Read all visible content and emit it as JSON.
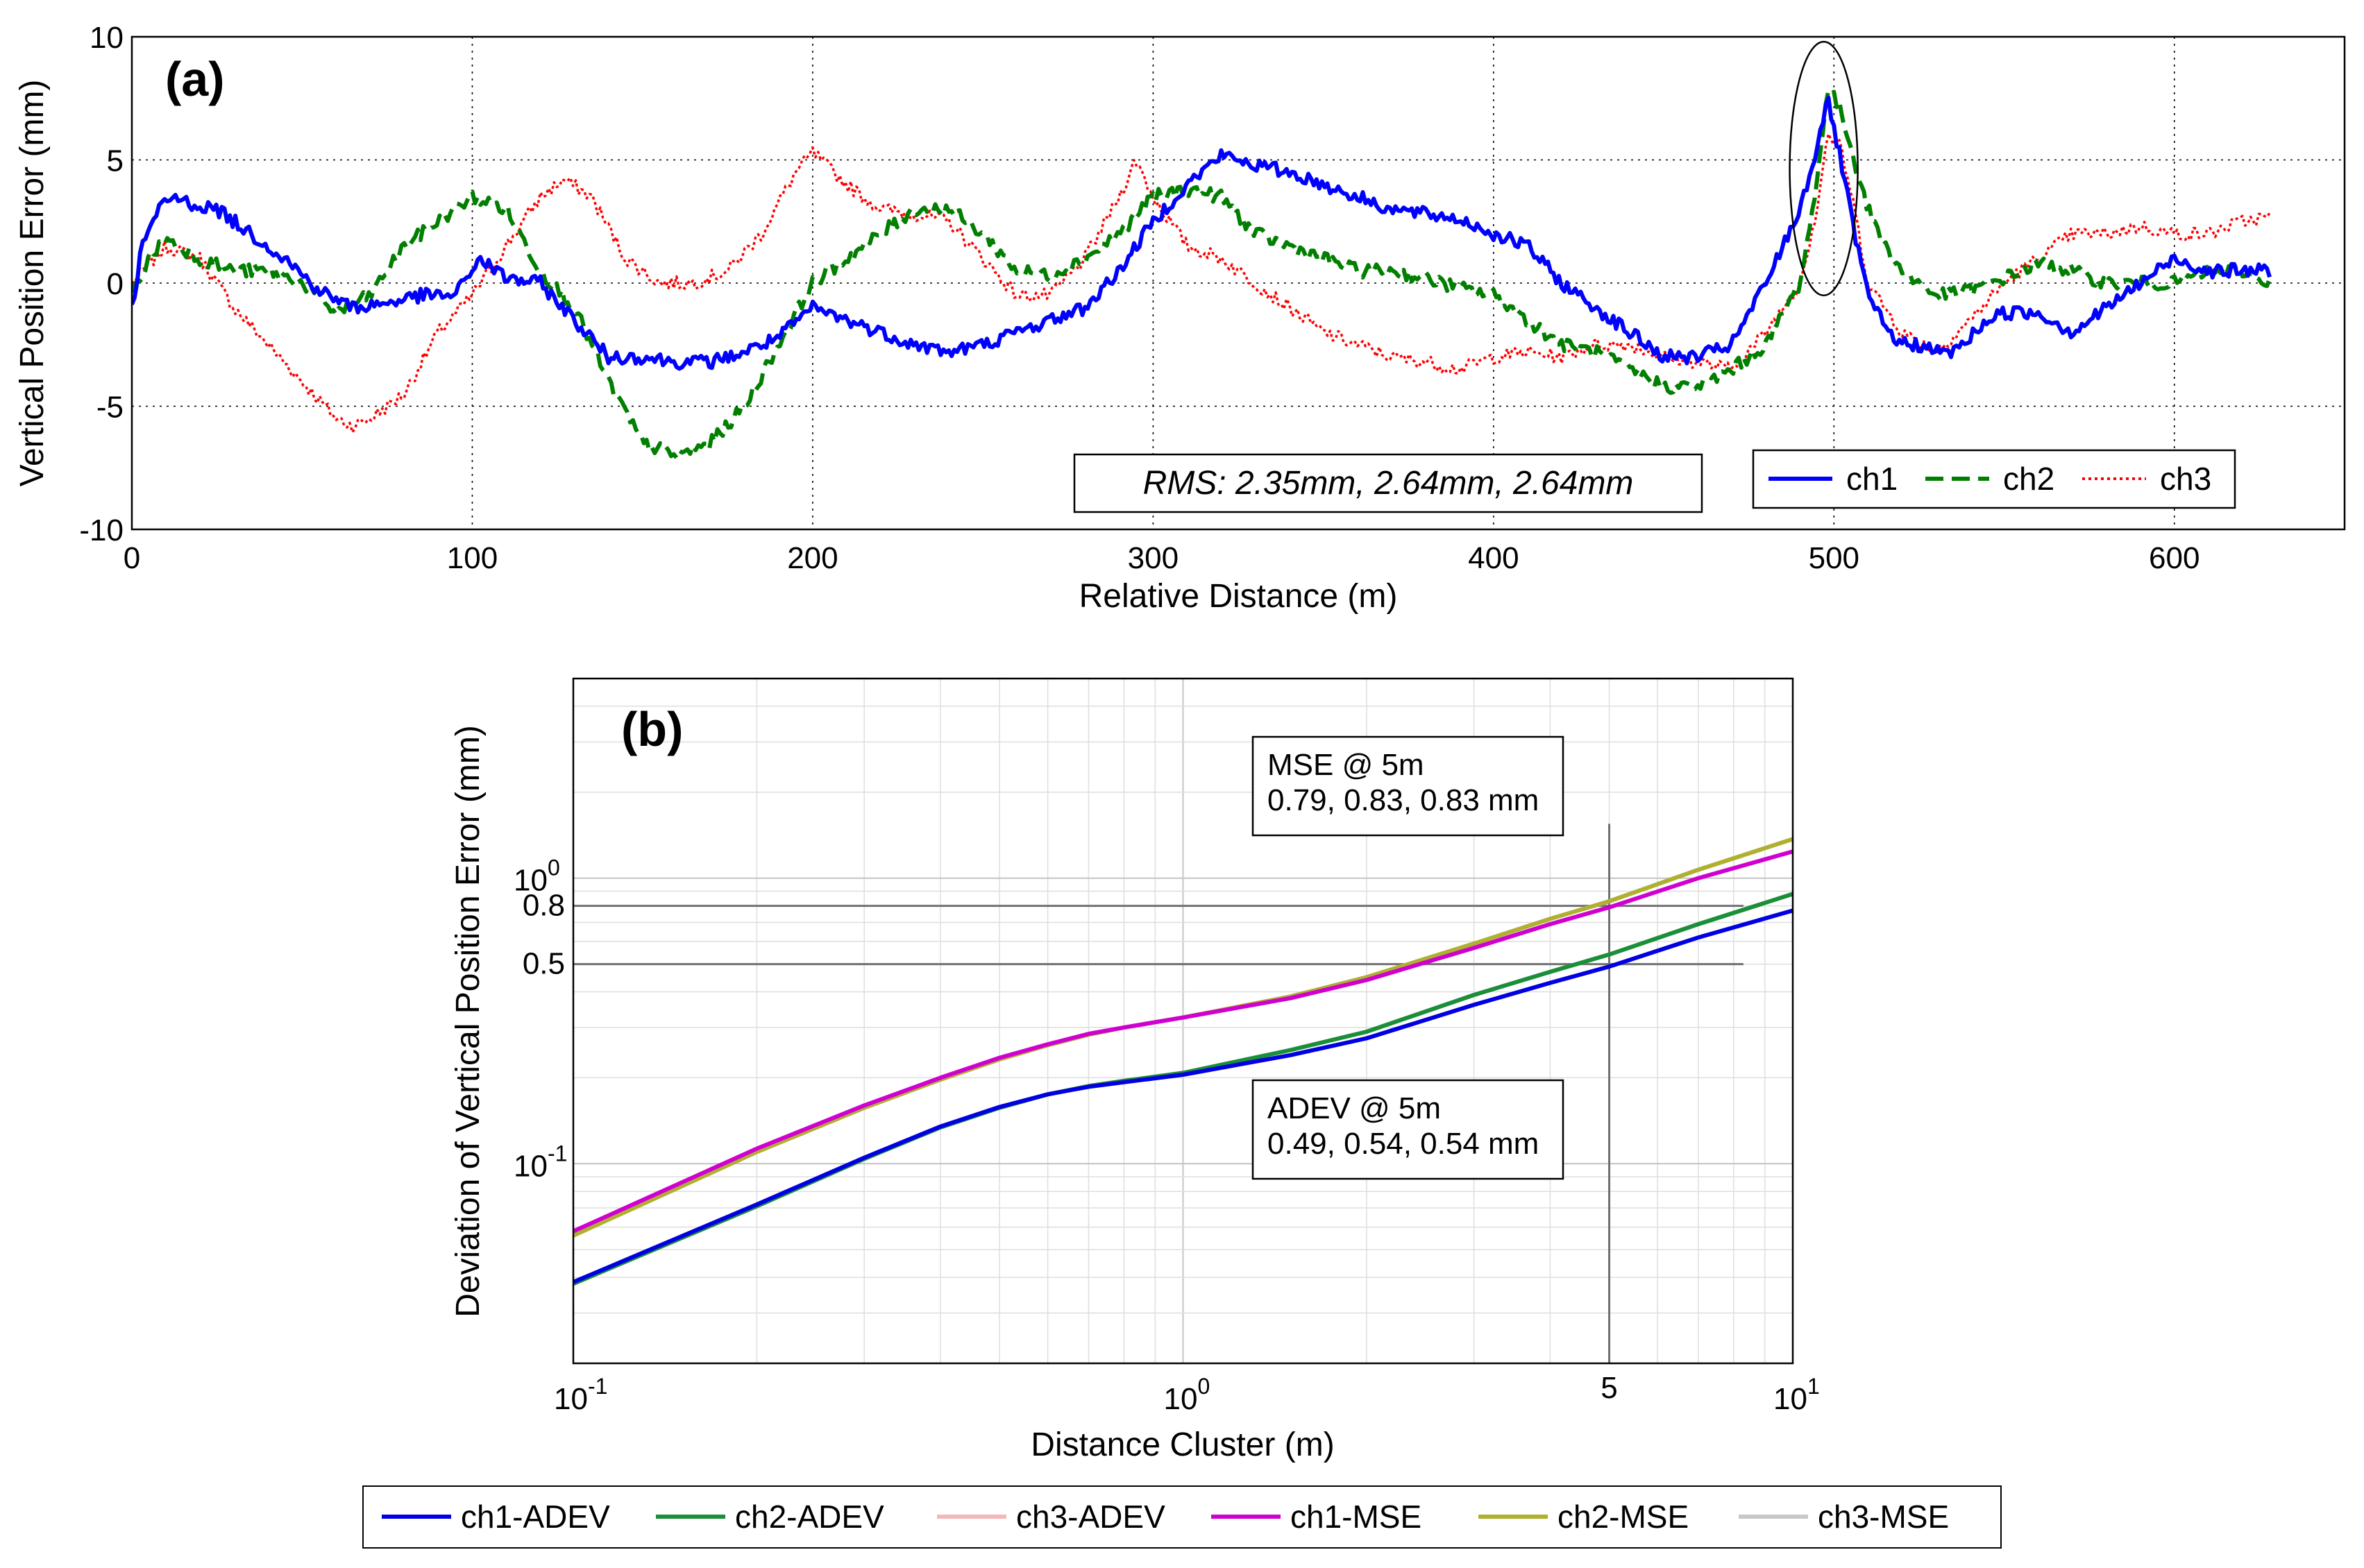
{
  "chart_data": [
    {
      "id": "a",
      "panel_label": "(a)",
      "type": "line",
      "xlabel": "Relative Distance (m)",
      "ylabel": "Vertical Position Error (mm)",
      "xlim": [
        0,
        650
      ],
      "ylim": [
        -10,
        10
      ],
      "xticks": [
        0,
        100,
        200,
        300,
        400,
        500,
        600
      ],
      "yticks": [
        -10,
        -5,
        0,
        5,
        10
      ],
      "grid": true,
      "annotation": "RMS: 2.35mm, 2.64mm, 2.64mm",
      "highlight_ellipse": {
        "x_center": 497,
        "x_halfwidth": 10,
        "y_min": -0.5,
        "y_max": 9.8
      },
      "legend_position": "bottom-right",
      "series": [
        {
          "name": "ch1",
          "color": "#0000ff",
          "style": "solid",
          "x": [
            0,
            3,
            8,
            12,
            18,
            25,
            35,
            45,
            55,
            65,
            75,
            85,
            95,
            102,
            110,
            120,
            130,
            140,
            150,
            160,
            170,
            180,
            190,
            200,
            210,
            220,
            230,
            240,
            250,
            260,
            270,
            280,
            290,
            300,
            310,
            320,
            330,
            340,
            350,
            360,
            370,
            380,
            390,
            400,
            410,
            420,
            430,
            440,
            450,
            460,
            470,
            480,
            490,
            495,
            498,
            502,
            506,
            510,
            515,
            520,
            525,
            530,
            535,
            540,
            545,
            550,
            560,
            570,
            580,
            590,
            600,
            610,
            620,
            628
          ],
          "values": [
            -1,
            1.5,
            3,
            3.5,
            3.2,
            3,
            2,
            1,
            -0.3,
            -1,
            -0.8,
            -0.5,
            -0.5,
            1,
            0.2,
            0,
            -1.5,
            -3,
            -3,
            -3.2,
            -3.2,
            -2.8,
            -2.2,
            -1,
            -1.5,
            -2,
            -2.5,
            -2.8,
            -2.5,
            -2,
            -1.5,
            -1,
            0.5,
            2.5,
            4,
            5.2,
            4.8,
            4.5,
            4,
            3.5,
            3,
            2.8,
            2.6,
            2,
            1.5,
            0,
            -1,
            -2,
            -3,
            -3,
            -2.5,
            0,
            3,
            5.5,
            7.5,
            5,
            2,
            -0.5,
            -1.8,
            -2.5,
            -2.5,
            -2.8,
            -2.8,
            -2.2,
            -1.5,
            -1.2,
            -1.2,
            -2,
            -1,
            0,
            1,
            0.5,
            0.5,
            0.5
          ]
        },
        {
          "name": "ch2",
          "color": "#007f00",
          "style": "dashed",
          "x": [
            0,
            5,
            10,
            20,
            30,
            40,
            50,
            60,
            70,
            80,
            90,
            100,
            110,
            120,
            130,
            140,
            150,
            160,
            170,
            180,
            190,
            200,
            210,
            220,
            230,
            240,
            250,
            260,
            270,
            280,
            290,
            300,
            310,
            320,
            330,
            340,
            350,
            360,
            370,
            380,
            390,
            400,
            410,
            420,
            430,
            440,
            450,
            460,
            470,
            480,
            490,
            495,
            498,
            502,
            506,
            510,
            515,
            520,
            530,
            540,
            550,
            560,
            570,
            580,
            590,
            600,
            610,
            620,
            628
          ],
          "values": [
            -0.5,
            1,
            1.8,
            1,
            0.5,
            0.5,
            0,
            -1.2,
            -0.5,
            1.5,
            2.5,
            3.5,
            3,
            0.5,
            -1,
            -4,
            -6.5,
            -7,
            -6.5,
            -5,
            -2.5,
            0,
            1,
            2,
            3,
            3,
            2,
            0.5,
            0.3,
            1,
            2,
            3.5,
            3.8,
            3.5,
            2,
            1.5,
            1,
            0.5,
            0.5,
            0.2,
            -0.2,
            -0.5,
            -1.5,
            -2.5,
            -2.8,
            -3.5,
            -4.2,
            -4.2,
            -3.5,
            -2.5,
            0,
            4,
            8,
            7,
            5,
            3,
            1.5,
            0.5,
            -0.5,
            -0.3,
            0.2,
            0.8,
            0.5,
            0,
            0,
            0,
            0.5,
            0.5,
            0
          ]
        },
        {
          "name": "ch3",
          "color": "#ff0000",
          "style": "dotted",
          "x": [
            0,
            10,
            20,
            30,
            40,
            50,
            60,
            65,
            70,
            80,
            90,
            100,
            110,
            120,
            127,
            135,
            145,
            155,
            165,
            175,
            185,
            195,
            200,
            210,
            220,
            230,
            240,
            250,
            260,
            270,
            280,
            290,
            295,
            300,
            310,
            320,
            330,
            340,
            350,
            360,
            370,
            380,
            390,
            400,
            410,
            420,
            430,
            440,
            450,
            460,
            470,
            480,
            490,
            495,
            498,
            502,
            506,
            510,
            520,
            530,
            540,
            550,
            560,
            570,
            580,
            590,
            600,
            610,
            620,
            628
          ],
          "values": [
            0,
            1.5,
            1,
            -1,
            -2.5,
            -4,
            -5.5,
            -5.8,
            -5.5,
            -4.5,
            -2,
            -0.5,
            1.5,
            3.5,
            4.2,
            3.5,
            1,
            0,
            0,
            0.5,
            2,
            4.5,
            5.3,
            4,
            3,
            2.8,
            2.5,
            1,
            -0.5,
            -0.5,
            1,
            3.5,
            5,
            3.5,
            1.5,
            1,
            0,
            -1,
            -2,
            -2.5,
            -3,
            -3.2,
            -3.5,
            -3,
            -2.8,
            -3,
            -2.5,
            -2.5,
            -3,
            -3.2,
            -3.5,
            -2,
            0,
            3,
            6,
            5.5,
            3,
            0,
            -2,
            -2.8,
            -1.5,
            0,
            1,
            2,
            2,
            2.3,
            2,
            2,
            2.5,
            2.7
          ]
        }
      ]
    },
    {
      "id": "b",
      "panel_label": "(b)",
      "type": "line",
      "scale": "log-log",
      "xlabel": "Distance Cluster (m)",
      "ylabel": "Deviation of Vertical Position Error (mm)",
      "xlim": [
        0.1,
        10
      ],
      "ylim": [
        0.02,
        5
      ],
      "xtick_labels": [
        "10",
        "10"
      ],
      "xtick_exponents": [
        "-1",
        "0",
        "1"
      ],
      "ytick_exponents": [
        "-1",
        "0"
      ],
      "extra_ytick_labels": [
        "0.8",
        "0.5"
      ],
      "extra_xtick_label": "5",
      "reference_lines": {
        "y": [
          0.8,
          0.5
        ],
        "x": [
          5
        ]
      },
      "grid": true,
      "annotations": [
        {
          "line1": "MSE @ 5m",
          "line2": "0.79, 0.83, 0.83 mm"
        },
        {
          "line1": "ADEV @ 5m",
          "line2": "0.49, 0.54, 0.54 mm"
        }
      ],
      "legend_position": "bottom-outside",
      "series": [
        {
          "name": "ch1-ADEV",
          "color": "#0000e0",
          "x": [
            0.1,
            0.2,
            0.3,
            0.4,
            0.5,
            0.6,
            0.7,
            0.8,
            1,
            1.5,
            2,
            3,
            4,
            5,
            7,
            10
          ],
          "values": [
            0.0385,
            0.072,
            0.105,
            0.135,
            0.158,
            0.175,
            0.186,
            0.193,
            0.205,
            0.24,
            0.275,
            0.36,
            0.43,
            0.49,
            0.62,
            0.77
          ]
        },
        {
          "name": "ch2-ADEV",
          "color": "#1a8f3a",
          "x": [
            0.1,
            0.2,
            0.3,
            0.4,
            0.5,
            0.6,
            0.7,
            0.8,
            1,
            1.5,
            2,
            3,
            4,
            5,
            7,
            10
          ],
          "values": [
            0.038,
            0.071,
            0.104,
            0.134,
            0.157,
            0.175,
            0.187,
            0.195,
            0.208,
            0.25,
            0.29,
            0.39,
            0.47,
            0.54,
            0.69,
            0.88
          ]
        },
        {
          "name": "ch3-ADEV",
          "color": "#f4b8b8",
          "x": [
            0.1,
            0.2,
            0.3,
            0.4,
            0.5,
            0.6,
            0.7,
            0.8,
            1,
            1.5,
            2,
            3,
            4,
            5,
            7,
            10
          ],
          "values": [
            0.038,
            0.071,
            0.104,
            0.134,
            0.157,
            0.175,
            0.187,
            0.195,
            0.208,
            0.25,
            0.29,
            0.39,
            0.47,
            0.54,
            0.69,
            0.88
          ]
        },
        {
          "name": "ch1-MSE",
          "color": "#d000d0",
          "x": [
            0.1,
            0.2,
            0.3,
            0.4,
            0.5,
            0.6,
            0.7,
            0.8,
            1,
            1.5,
            2,
            3,
            4,
            5,
            7,
            10
          ],
          "values": [
            0.058,
            0.113,
            0.16,
            0.2,
            0.235,
            0.262,
            0.285,
            0.3,
            0.325,
            0.38,
            0.44,
            0.57,
            0.69,
            0.79,
            1.0,
            1.24
          ]
        },
        {
          "name": "ch2-MSE",
          "color": "#b0b030",
          "x": [
            0.1,
            0.2,
            0.3,
            0.4,
            0.5,
            0.6,
            0.7,
            0.8,
            1,
            1.5,
            2,
            3,
            4,
            5,
            7,
            10
          ],
          "values": [
            0.056,
            0.11,
            0.157,
            0.197,
            0.232,
            0.26,
            0.283,
            0.3,
            0.325,
            0.385,
            0.45,
            0.59,
            0.72,
            0.83,
            1.07,
            1.37
          ]
        },
        {
          "name": "ch3-MSE",
          "color": "#c8c8c8",
          "x": [
            0.1,
            0.2,
            0.3,
            0.4,
            0.5,
            0.6,
            0.7,
            0.8,
            1,
            1.5,
            2,
            3,
            4,
            5,
            7,
            10
          ],
          "values": [
            0.056,
            0.11,
            0.157,
            0.197,
            0.232,
            0.26,
            0.283,
            0.3,
            0.325,
            0.385,
            0.45,
            0.59,
            0.72,
            0.83,
            1.07,
            1.37
          ]
        }
      ]
    }
  ]
}
